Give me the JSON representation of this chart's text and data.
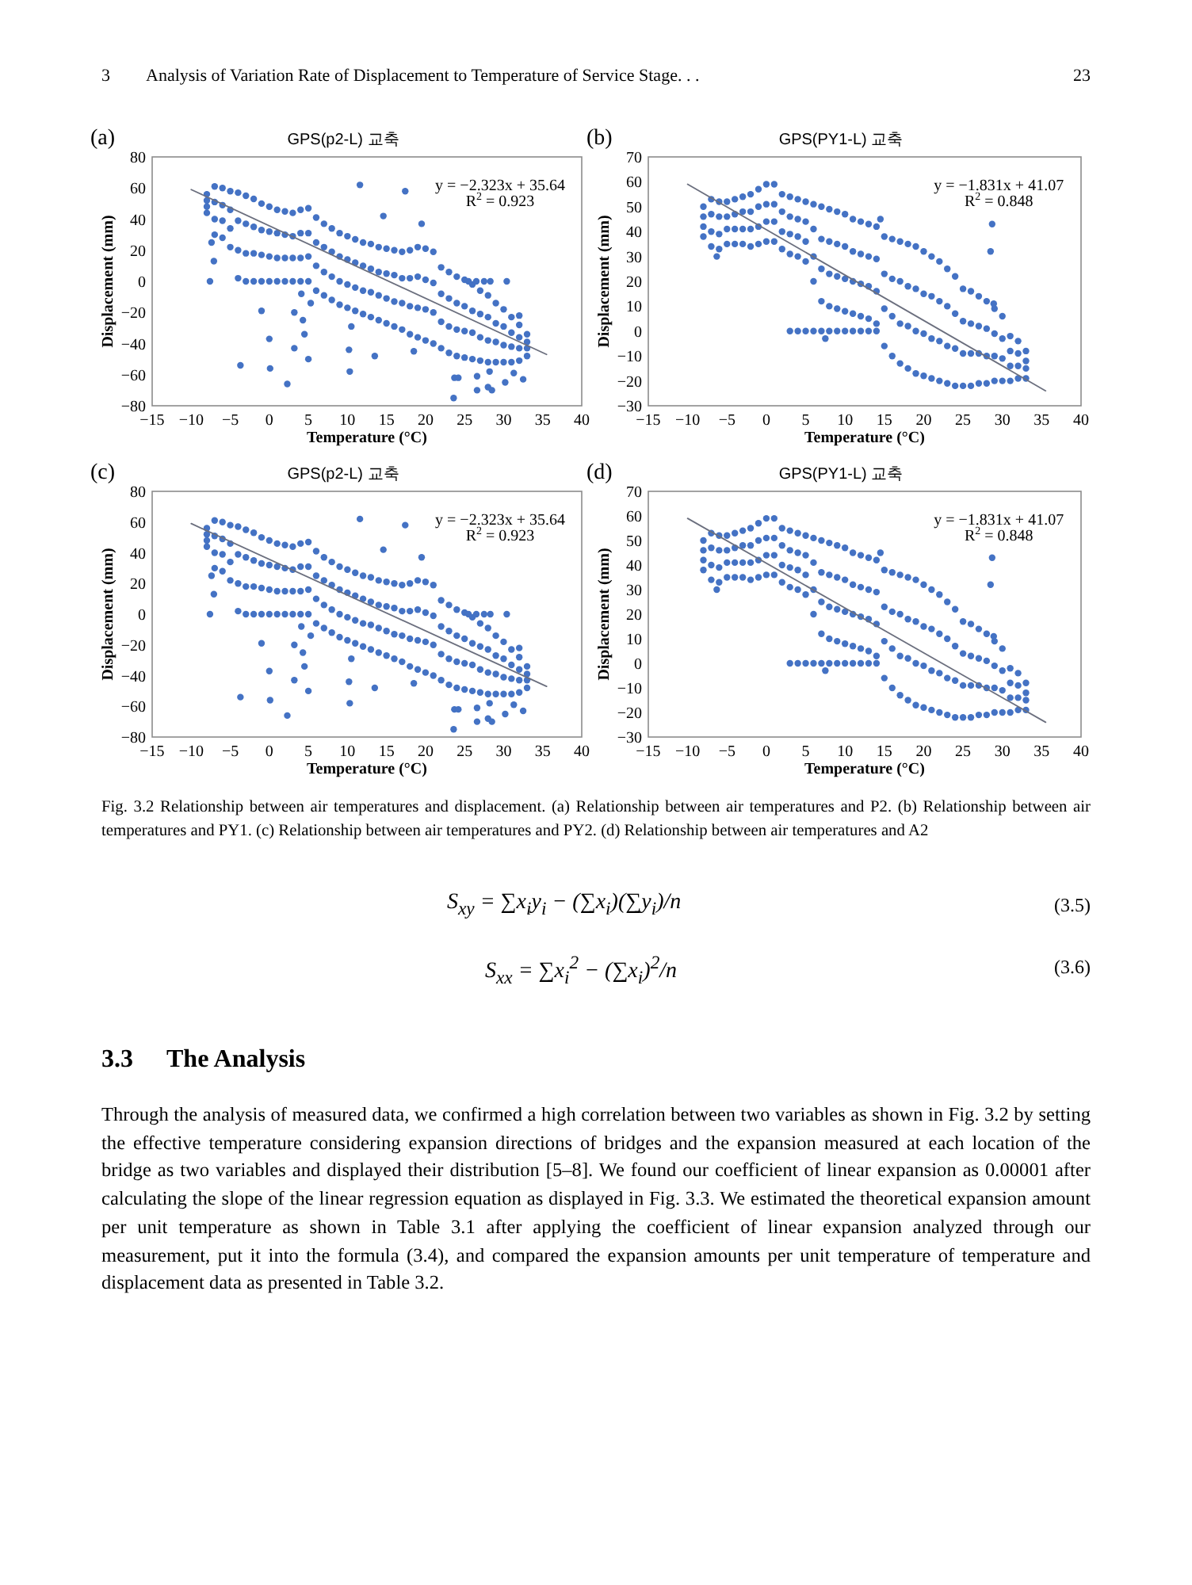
{
  "chart_data": [
    {
      "type": "other",
      "annotations": [
        "3",
        "Analysis of Variation Rate of Displacement to Temperature of Service Stage. . .",
        "23"
      ]
    },
    {
      "type": "scatter",
      "title": "GPS(p2-L) 교축",
      "xlabel": "Temperature (°C)",
      "ylabel": "Displacement (mm)",
      "annotations": [
        "(a)",
        "y = −2.323x + 35.64",
        "R$^{2}$ = 0.923"
      ],
      "xlim": [
        -15,
        40
      ],
      "xticks": [
        {
          "value": -15,
          "label": "−15"
        },
        {
          "value": -10,
          "label": "−10"
        },
        {
          "value": -5,
          "label": "−5"
        },
        0,
        5,
        10,
        15,
        20,
        25,
        30,
        35,
        40
      ],
      "ylim": [
        -80,
        80
      ],
      "yticks": [
        {
          "value": -80,
          "label": "−80"
        },
        {
          "value": -60,
          "label": "−60"
        },
        {
          "value": -40,
          "label": "−40"
        },
        {
          "value": -20,
          "label": "−20"
        },
        0,
        20,
        40,
        60,
        80
      ],
      "series": [
        {
          "type": "scatter",
          "marker": "circle",
          "color": "#4472c4",
          "x": [
            -8,
            -8,
            -8,
            -8,
            -7,
            -7,
            -7,
            -7,
            -6,
            -6,
            -6,
            -6,
            -5,
            -5,
            -5,
            -5,
            -4,
            -4,
            -4,
            -4,
            -3,
            -3,
            -3,
            -3,
            -2,
            -2,
            -2,
            -2,
            -1,
            -1,
            -1,
            -1,
            0,
            0,
            0,
            0,
            1,
            1,
            1,
            1,
            2,
            2,
            2,
            2,
            3,
            3,
            3,
            3,
            4,
            4,
            4,
            4,
            5,
            5,
            5,
            5,
            6,
            6,
            6,
            6,
            7,
            7,
            7,
            7,
            8,
            8,
            8,
            8,
            9,
            9,
            9,
            9,
            10,
            10,
            10,
            10,
            11,
            11,
            11,
            11,
            12,
            12,
            12,
            12,
            13,
            13,
            13,
            13,
            14,
            14,
            14,
            14,
            15,
            15,
            15,
            15,
            16,
            16,
            16,
            16,
            17,
            17,
            17,
            17,
            18,
            18,
            18,
            18,
            19,
            19,
            19,
            19,
            20,
            20,
            20,
            20,
            21,
            21,
            21,
            21,
            22,
            22,
            22,
            22,
            23,
            23,
            23,
            23,
            24,
            24,
            24,
            24,
            25,
            25,
            25,
            25,
            26,
            26,
            26,
            26,
            27,
            27,
            27,
            27,
            28,
            28,
            28,
            28,
            29,
            29,
            29,
            29,
            30,
            30,
            30,
            30,
            31,
            31,
            31,
            31,
            32,
            32,
            32,
            32,
            33,
            33,
            33,
            33
          ],
          "values": [
            56,
            52,
            48,
            44,
            61,
            51,
            40,
            30,
            60,
            49,
            39,
            28,
            58,
            46,
            34,
            22,
            57,
            39,
            20,
            2,
            55,
            37,
            18,
            0,
            53,
            35,
            18,
            0,
            50,
            33,
            17,
            0,
            48,
            32,
            16,
            0,
            46,
            31,
            15,
            0,
            45,
            30,
            15,
            0,
            44,
            29,
            15,
            0,
            46,
            31,
            15,
            0,
            47,
            31,
            16,
            0,
            41,
            25,
            10,
            -6,
            37,
            22,
            6,
            -9,
            34,
            19,
            3,
            -12,
            31,
            16,
            0,
            -15,
            29,
            14,
            -2,
            -17,
            27,
            12,
            -4,
            -19,
            25,
            10,
            -6,
            -21,
            24,
            8,
            -7,
            -23,
            22,
            6,
            -9,
            -25,
            21,
            5,
            -11,
            -27,
            20,
            4,
            -13,
            -29,
            19,
            2,
            -14,
            -31,
            20,
            2,
            -16,
            -34,
            22,
            3,
            -17,
            -36,
            21,
            1,
            -18,
            -38,
            19,
            -1,
            -20,
            -40,
            9,
            -8,
            -26,
            -43,
            6,
            -11,
            -29,
            -46,
            3,
            -14,
            -31,
            -48,
            1,
            -16,
            -32,
            -49,
            -2,
            -19,
            -33,
            -50,
            -6,
            -21,
            -36,
            -51,
            -9,
            -23,
            -38,
            -52,
            -14,
            -27,
            -39,
            -52,
            -18,
            -29,
            -41,
            -52,
            -23,
            -33,
            -42,
            -52,
            -28,
            -36,
            -43,
            -51,
            -34,
            -39,
            -43,
            -48
          ]
        },
        {
          "type": "scatter",
          "marker": "circle",
          "color": "#4472c4",
          "x": [
            25.5,
            26.5,
            27.5,
            28.3,
            11.6,
            17.4,
            14.6,
            19.5,
            -7.6,
            -7.1,
            -7.4,
            -1,
            0,
            -3.7,
            0.1,
            2.3,
            3.2,
            3.2,
            4.3,
            4.5,
            5,
            5.3,
            4.1,
            10.3,
            10.2,
            13.5,
            10.5,
            18.5,
            23.6,
            23.7,
            24.2,
            26.6,
            26.6,
            28,
            28.5,
            30.2,
            30.4,
            32,
            32.5,
            31.3,
            28.2
          ],
          "values": [
            0,
            0,
            0,
            0,
            62,
            58,
            42,
            37,
            0,
            13,
            25,
            -19,
            -37,
            -54,
            -56,
            -66,
            -20,
            -43,
            -25,
            -34,
            -50,
            -14,
            -8,
            -58,
            -44,
            -48,
            -29,
            -45,
            -75,
            -62,
            -62,
            -70,
            -61,
            -68,
            -70,
            -65,
            0,
            -22,
            -63,
            -59,
            -58
          ]
        },
        {
          "type": "line",
          "color": "#6b6f7e",
          "x": [
            -10,
            35.5
          ],
          "values": [
            59,
            -47
          ]
        }
      ]
    },
    {
      "type": "scatter",
      "title": "GPS(PY1-L) 교축",
      "xlabel": "Temperature (°C)",
      "ylabel": "Displacement (mm)",
      "annotations": [
        "(b)",
        "y = −1.831x + 41.07",
        "R$^{2}$ = 0.848"
      ],
      "xlim": [
        -15,
        40
      ],
      "xticks": [
        {
          "value": -15,
          "label": "−15"
        },
        {
          "value": -10,
          "label": "−10"
        },
        {
          "value": -5,
          "label": "−5"
        },
        0,
        5,
        10,
        15,
        20,
        25,
        30,
        35,
        40
      ],
      "ylim": [
        -30,
        70
      ],
      "yticks": [
        {
          "value": -30,
          "label": "−30"
        },
        {
          "value": -20,
          "label": "−20"
        },
        {
          "value": -10,
          "label": "−10"
        },
        0,
        10,
        20,
        30,
        40,
        50,
        60,
        70
      ],
      "series": [
        {
          "type": "scatter",
          "marker": "circle",
          "color": "#4472c4",
          "x": [
            -8,
            -8,
            -8,
            -8,
            -7,
            -7,
            -7,
            -7,
            -6,
            -6,
            -6,
            -6,
            -5,
            -5,
            -5,
            -5,
            -4,
            -4,
            -4,
            -4,
            -3,
            -3,
            -3,
            -3,
            -2,
            -2,
            -2,
            -2,
            -1,
            -1,
            -1,
            -1,
            0,
            0,
            0,
            0,
            1,
            1,
            1,
            1,
            2,
            2,
            2,
            2,
            3,
            3,
            3,
            3,
            4,
            4,
            4,
            4,
            5,
            5,
            5,
            5,
            6,
            6,
            6,
            6,
            7,
            7,
            7,
            7,
            8,
            8,
            8,
            8,
            9,
            9,
            9,
            9,
            10,
            10,
            10,
            10,
            11,
            11,
            11,
            11,
            12,
            12,
            12,
            12,
            13,
            13,
            13,
            13,
            14,
            14,
            14,
            14,
            15,
            15,
            15,
            15,
            16,
            16,
            16,
            16,
            17,
            17,
            17,
            17,
            18,
            18,
            18,
            18,
            19,
            19,
            19,
            19,
            20,
            20,
            20,
            20,
            21,
            21,
            21,
            21,
            22,
            22,
            22,
            22,
            23,
            23,
            23,
            23,
            24,
            24,
            24,
            24,
            25,
            25,
            25,
            25,
            26,
            26,
            26,
            26,
            27,
            27,
            27,
            27,
            28,
            28,
            28,
            28,
            29,
            29,
            29,
            29,
            30,
            30,
            30,
            30,
            31,
            31,
            31,
            31,
            32,
            32,
            32,
            32,
            33,
            33,
            33,
            33
          ],
          "values": [
            50,
            46,
            42,
            38,
            53,
            47,
            40,
            34,
            52,
            46,
            39,
            33,
            52,
            46,
            41,
            35,
            53,
            47,
            41,
            35,
            54,
            48,
            41,
            35,
            55,
            48,
            41,
            34,
            57,
            50,
            42,
            35,
            59,
            51,
            44,
            36,
            59,
            51,
            44,
            36,
            55,
            48,
            40,
            33,
            54,
            46,
            39,
            31,
            53,
            45,
            38,
            30,
            52,
            44,
            36,
            28,
            51,
            41,
            30,
            20,
            50,
            37,
            25,
            12,
            49,
            36,
            23,
            10,
            48,
            35,
            22,
            9,
            47,
            34,
            21,
            8,
            45,
            32,
            20,
            7,
            44,
            31,
            19,
            6,
            43,
            30,
            18,
            5,
            42,
            29,
            16,
            3,
            38,
            23,
            9,
            -6,
            37,
            21,
            6,
            -10,
            36,
            20,
            3,
            -13,
            35,
            18,
            2,
            -15,
            34,
            17,
            0,
            -17,
            32,
            15,
            -1,
            -18,
            30,
            14,
            -3,
            -19,
            28,
            12,
            -4,
            -20,
            25,
            10,
            -6,
            -21,
            22,
            7,
            -7,
            -22,
            17,
            4,
            -9,
            -22,
            16,
            3,
            -9,
            -22,
            14,
            2,
            -9,
            -21,
            12,
            1,
            -10,
            -21,
            9,
            -1,
            -10,
            -20,
            6,
            -3,
            -11,
            -20,
            -2,
            -8,
            -14,
            -20,
            -4,
            -9,
            -14,
            -19,
            -8,
            -12,
            -15,
            -19
          ]
        },
        {
          "type": "scatter",
          "marker": "circle",
          "color": "#4472c4",
          "x": [
            3,
            4,
            5,
            6,
            7,
            8,
            9,
            10,
            11,
            12,
            13,
            14,
            28.7,
            28.5,
            28.9,
            -6.3,
            7.5,
            14.5
          ],
          "values": [
            0,
            0,
            0,
            0,
            0,
            0,
            0,
            0,
            0,
            0,
            0,
            0,
            43,
            32,
            11,
            30,
            -3,
            45
          ]
        },
        {
          "type": "line",
          "color": "#6b6f7e",
          "x": [
            -10,
            35.5
          ],
          "values": [
            59,
            -24
          ]
        }
      ]
    },
    {
      "type": "scatter",
      "title": "GPS(p2-L) 교축",
      "xlabel": "Temperature (°C)",
      "ylabel": "Displacement (mm)",
      "annotations": [
        "(c)",
        "y = −2.323x + 35.64",
        "R$^{2}$ = 0.923"
      ],
      "xlim": [
        -15,
        40
      ],
      "xticks": [
        {
          "value": -15,
          "label": "−15"
        },
        {
          "value": -10,
          "label": "−10"
        },
        {
          "value": -5,
          "label": "−5"
        },
        0,
        5,
        10,
        15,
        20,
        25,
        30,
        35,
        40
      ],
      "ylim": [
        -80,
        80
      ],
      "yticks": [
        {
          "value": -80,
          "label": "−80"
        },
        {
          "value": -60,
          "label": "−60"
        },
        {
          "value": -40,
          "label": "−40"
        },
        {
          "value": -20,
          "label": "−20"
        },
        0,
        20,
        40,
        60,
        80
      ],
      "series": [
        {
          "type": "scatter",
          "marker": "circle",
          "color": "#4472c4",
          "x": [
            -8,
            -8,
            -8,
            -8,
            -7,
            -7,
            -7,
            -7,
            -6,
            -6,
            -6,
            -6,
            -5,
            -5,
            -5,
            -5,
            -4,
            -4,
            -4,
            -4,
            -3,
            -3,
            -3,
            -3,
            -2,
            -2,
            -2,
            -2,
            -1,
            -1,
            -1,
            -1,
            0,
            0,
            0,
            0,
            1,
            1,
            1,
            1,
            2,
            2,
            2,
            2,
            3,
            3,
            3,
            3,
            4,
            4,
            4,
            4,
            5,
            5,
            5,
            5,
            6,
            6,
            6,
            6,
            7,
            7,
            7,
            7,
            8,
            8,
            8,
            8,
            9,
            9,
            9,
            9,
            10,
            10,
            10,
            10,
            11,
            11,
            11,
            11,
            12,
            12,
            12,
            12,
            13,
            13,
            13,
            13,
            14,
            14,
            14,
            14,
            15,
            15,
            15,
            15,
            16,
            16,
            16,
            16,
            17,
            17,
            17,
            17,
            18,
            18,
            18,
            18,
            19,
            19,
            19,
            19,
            20,
            20,
            20,
            20,
            21,
            21,
            21,
            21,
            22,
            22,
            22,
            22,
            23,
            23,
            23,
            23,
            24,
            24,
            24,
            24,
            25,
            25,
            25,
            25,
            26,
            26,
            26,
            26,
            27,
            27,
            27,
            27,
            28,
            28,
            28,
            28,
            29,
            29,
            29,
            29,
            30,
            30,
            30,
            30,
            31,
            31,
            31,
            31,
            32,
            32,
            32,
            32,
            33,
            33,
            33,
            33
          ],
          "values": [
            56,
            52,
            48,
            44,
            61,
            51,
            40,
            30,
            60,
            49,
            39,
            28,
            58,
            46,
            34,
            22,
            57,
            39,
            20,
            2,
            55,
            37,
            18,
            0,
            53,
            35,
            18,
            0,
            50,
            33,
            17,
            0,
            48,
            32,
            16,
            0,
            46,
            31,
            15,
            0,
            45,
            30,
            15,
            0,
            44,
            29,
            15,
            0,
            46,
            31,
            15,
            0,
            47,
            31,
            16,
            0,
            41,
            25,
            10,
            -6,
            37,
            22,
            6,
            -9,
            34,
            19,
            3,
            -12,
            31,
            16,
            0,
            -15,
            29,
            14,
            -2,
            -17,
            27,
            12,
            -4,
            -19,
            25,
            10,
            -6,
            -21,
            24,
            8,
            -7,
            -23,
            22,
            6,
            -9,
            -25,
            21,
            5,
            -11,
            -27,
            20,
            4,
            -13,
            -29,
            19,
            2,
            -14,
            -31,
            20,
            2,
            -16,
            -34,
            22,
            3,
            -17,
            -36,
            21,
            1,
            -18,
            -38,
            19,
            -1,
            -20,
            -40,
            9,
            -8,
            -26,
            -43,
            6,
            -11,
            -29,
            -46,
            3,
            -14,
            -31,
            -48,
            1,
            -16,
            -32,
            -49,
            -2,
            -19,
            -33,
            -50,
            -6,
            -21,
            -36,
            -51,
            -9,
            -23,
            -38,
            -52,
            -14,
            -27,
            -39,
            -52,
            -18,
            -29,
            -41,
            -52,
            -23,
            -33,
            -42,
            -52,
            -28,
            -36,
            -43,
            -51,
            -34,
            -39,
            -43,
            -48
          ]
        },
        {
          "type": "scatter",
          "marker": "circle",
          "color": "#4472c4",
          "x": [
            25.5,
            26.5,
            27.5,
            28.3,
            11.6,
            17.4,
            14.6,
            19.5,
            -7.6,
            -7.1,
            -7.4,
            -1,
            0,
            -3.7,
            0.1,
            2.3,
            3.2,
            3.2,
            4.3,
            4.5,
            5,
            5.3,
            4.1,
            10.3,
            10.2,
            13.5,
            10.5,
            18.5,
            23.6,
            23.7,
            24.2,
            26.6,
            26.6,
            28,
            28.5,
            30.2,
            30.4,
            32,
            32.5,
            31.3,
            28.2
          ],
          "values": [
            0,
            0,
            0,
            0,
            62,
            58,
            42,
            37,
            0,
            13,
            25,
            -19,
            -37,
            -54,
            -56,
            -66,
            -20,
            -43,
            -25,
            -34,
            -50,
            -14,
            -8,
            -58,
            -44,
            -48,
            -29,
            -45,
            -75,
            -62,
            -62,
            -70,
            -61,
            -68,
            -70,
            -65,
            0,
            -22,
            -63,
            -59,
            -58
          ]
        },
        {
          "type": "line",
          "color": "#6b6f7e",
          "x": [
            -10,
            35.5
          ],
          "values": [
            59,
            -47
          ]
        }
      ]
    },
    {
      "type": "scatter",
      "title": "GPS(PY1-L) 교축",
      "xlabel": "Temperature (°C)",
      "ylabel": "Displacement (mm)",
      "annotations": [
        "(d)",
        "y = −1.831x + 41.07",
        "R$^{2}$ = 0.848"
      ],
      "xlim": [
        -15,
        40
      ],
      "xticks": [
        {
          "value": -15,
          "label": "−15"
        },
        {
          "value": -10,
          "label": "−10"
        },
        {
          "value": -5,
          "label": "−5"
        },
        0,
        5,
        10,
        15,
        20,
        25,
        30,
        35,
        40
      ],
      "ylim": [
        -30,
        70
      ],
      "yticks": [
        {
          "value": -30,
          "label": "−30"
        },
        {
          "value": -20,
          "label": "−20"
        },
        {
          "value": -10,
          "label": "−10"
        },
        0,
        10,
        20,
        30,
        40,
        50,
        60,
        70
      ],
      "series": [
        {
          "type": "scatter",
          "marker": "circle",
          "color": "#4472c4",
          "x": [
            -8,
            -8,
            -8,
            -8,
            -7,
            -7,
            -7,
            -7,
            -6,
            -6,
            -6,
            -6,
            -5,
            -5,
            -5,
            -5,
            -4,
            -4,
            -4,
            -4,
            -3,
            -3,
            -3,
            -3,
            -2,
            -2,
            -2,
            -2,
            -1,
            -1,
            -1,
            -1,
            0,
            0,
            0,
            0,
            1,
            1,
            1,
            1,
            2,
            2,
            2,
            2,
            3,
            3,
            3,
            3,
            4,
            4,
            4,
            4,
            5,
            5,
            5,
            5,
            6,
            6,
            6,
            6,
            7,
            7,
            7,
            7,
            8,
            8,
            8,
            8,
            9,
            9,
            9,
            9,
            10,
            10,
            10,
            10,
            11,
            11,
            11,
            11,
            12,
            12,
            12,
            12,
            13,
            13,
            13,
            13,
            14,
            14,
            14,
            14,
            15,
            15,
            15,
            15,
            16,
            16,
            16,
            16,
            17,
            17,
            17,
            17,
            18,
            18,
            18,
            18,
            19,
            19,
            19,
            19,
            20,
            20,
            20,
            20,
            21,
            21,
            21,
            21,
            22,
            22,
            22,
            22,
            23,
            23,
            23,
            23,
            24,
            24,
            24,
            24,
            25,
            25,
            25,
            25,
            26,
            26,
            26,
            26,
            27,
            27,
            27,
            27,
            28,
            28,
            28,
            28,
            29,
            29,
            29,
            29,
            30,
            30,
            30,
            30,
            31,
            31,
            31,
            31,
            32,
            32,
            32,
            32,
            33,
            33,
            33,
            33
          ],
          "values": [
            50,
            46,
            42,
            38,
            53,
            47,
            40,
            34,
            52,
            46,
            39,
            33,
            52,
            46,
            41,
            35,
            53,
            47,
            41,
            35,
            54,
            48,
            41,
            35,
            55,
            48,
            41,
            34,
            57,
            50,
            42,
            35,
            59,
            51,
            44,
            36,
            59,
            51,
            44,
            36,
            55,
            48,
            40,
            33,
            54,
            46,
            39,
            31,
            53,
            45,
            38,
            30,
            52,
            44,
            36,
            28,
            51,
            41,
            30,
            20,
            50,
            37,
            25,
            12,
            49,
            36,
            23,
            10,
            48,
            35,
            22,
            9,
            47,
            34,
            21,
            8,
            45,
            32,
            20,
            7,
            44,
            31,
            19,
            6,
            43,
            30,
            18,
            5,
            42,
            29,
            16,
            3,
            38,
            23,
            9,
            -6,
            37,
            21,
            6,
            -10,
            36,
            20,
            3,
            -13,
            35,
            18,
            2,
            -15,
            34,
            17,
            0,
            -17,
            32,
            15,
            -1,
            -18,
            30,
            14,
            -3,
            -19,
            28,
            12,
            -4,
            -20,
            25,
            10,
            -6,
            -21,
            22,
            7,
            -7,
            -22,
            17,
            4,
            -9,
            -22,
            16,
            3,
            -9,
            -22,
            14,
            2,
            -9,
            -21,
            12,
            1,
            -10,
            -21,
            9,
            -1,
            -10,
            -20,
            6,
            -3,
            -11,
            -20,
            -2,
            -8,
            -14,
            -20,
            -4,
            -9,
            -14,
            -19,
            -8,
            -12,
            -15,
            -19
          ]
        },
        {
          "type": "scatter",
          "marker": "circle",
          "color": "#4472c4",
          "x": [
            3,
            4,
            5,
            6,
            7,
            8,
            9,
            10,
            11,
            12,
            13,
            14,
            28.7,
            28.5,
            28.9,
            -6.3,
            7.5,
            14.5
          ],
          "values": [
            0,
            0,
            0,
            0,
            0,
            0,
            0,
            0,
            0,
            0,
            0,
            0,
            43,
            32,
            11,
            30,
            -3,
            45
          ]
        },
        {
          "type": "line",
          "color": "#6b6f7e",
          "x": [
            -10,
            35.5
          ],
          "values": [
            59,
            -24
          ]
        }
      ]
    },
    {
      "type": "other",
      "annotations": [
        "Fig. 3.2 Relationship between air temperatures and displacement. (a) Relationship between air temperatures and P2. (b) Relationship between air temperatures and PY1. (c) Relationship between air temperatures and PY2. (d) Relationship between air temperatures and A2",
        "S$_{xy}$ = ∑x$_{i}$y$_{i}$ − (∑x$_{i}$)(∑y$_{i}$)/n",
        "(3.5)",
        "S$_{xx}$ = ∑x$_{i}$$^{2}$ − (∑x$_{i}$)$^{2}$/n",
        "(3.6)",
        "3.3",
        "The Analysis",
        "Through the analysis of measured data, we confirmed a high correlation between two variables as shown in Fig. 3.2 by setting the effective temperature considering expansion directions of bridges and the expansion measured at each location of the bridge as two variables and displayed their distribution [5–8]. We found our coefficient of linear expansion as 0.00001 after calculating the slope of the linear regression equation as displayed in Fig. 3.3. We estimated the theoretical expansion amount per unit temperature as shown in Table 3.1 after applying the coefficient of linear expansion analyzed through our measurement, put it into the formula (3.4), and compared the expansion amounts per unit temperature of temperature and displacement data as presented in Table 3.2."
      ]
    }
  ]
}
